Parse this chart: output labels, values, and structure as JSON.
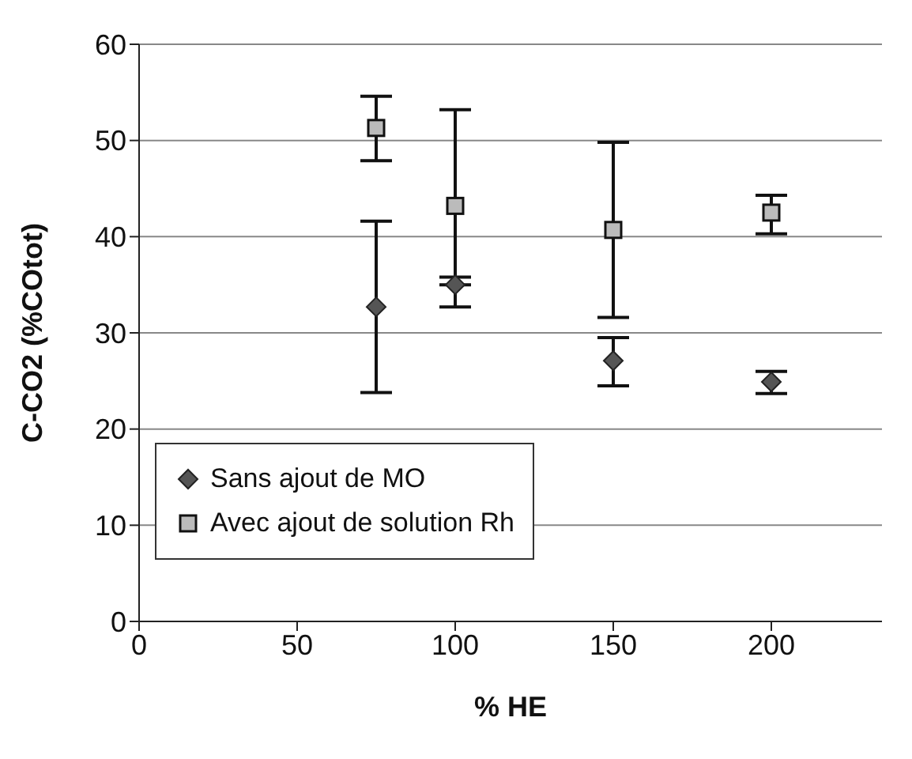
{
  "chart_data": {
    "type": "scatter",
    "xlabel": "% HE",
    "ylabel": "C-CO2 (%COtot)",
    "x": [
      75,
      100,
      150,
      200
    ],
    "series": [
      {
        "name": "Sans ajout de MO",
        "color": "#555555",
        "marker": "diamond",
        "values": [
          32.7,
          35,
          27.1,
          24.9
        ],
        "errors": [
          [
            23.8,
            41.6
          ],
          [
            32.7,
            35.8
          ],
          [
            24.5,
            29.5
          ],
          [
            23.7,
            26
          ]
        ]
      },
      {
        "name": "Avec ajout de solution Rh",
        "color": "#bbbbbb",
        "marker": "square",
        "values": [
          51.3,
          43.2,
          40.7,
          42.5
        ],
        "errors": [
          [
            47.9,
            54.6
          ],
          [
            35,
            53.2
          ],
          [
            31.6,
            49.8
          ],
          [
            40.3,
            44.3
          ]
        ]
      }
    ],
    "xlim": [
      0,
      235
    ],
    "xticks": [
      0,
      50,
      100,
      150,
      200
    ],
    "ylim": [
      0,
      60
    ],
    "yticks": [
      0,
      10,
      20,
      30,
      40,
      50,
      60
    ],
    "grid": "y",
    "legend": "bottom left"
  }
}
